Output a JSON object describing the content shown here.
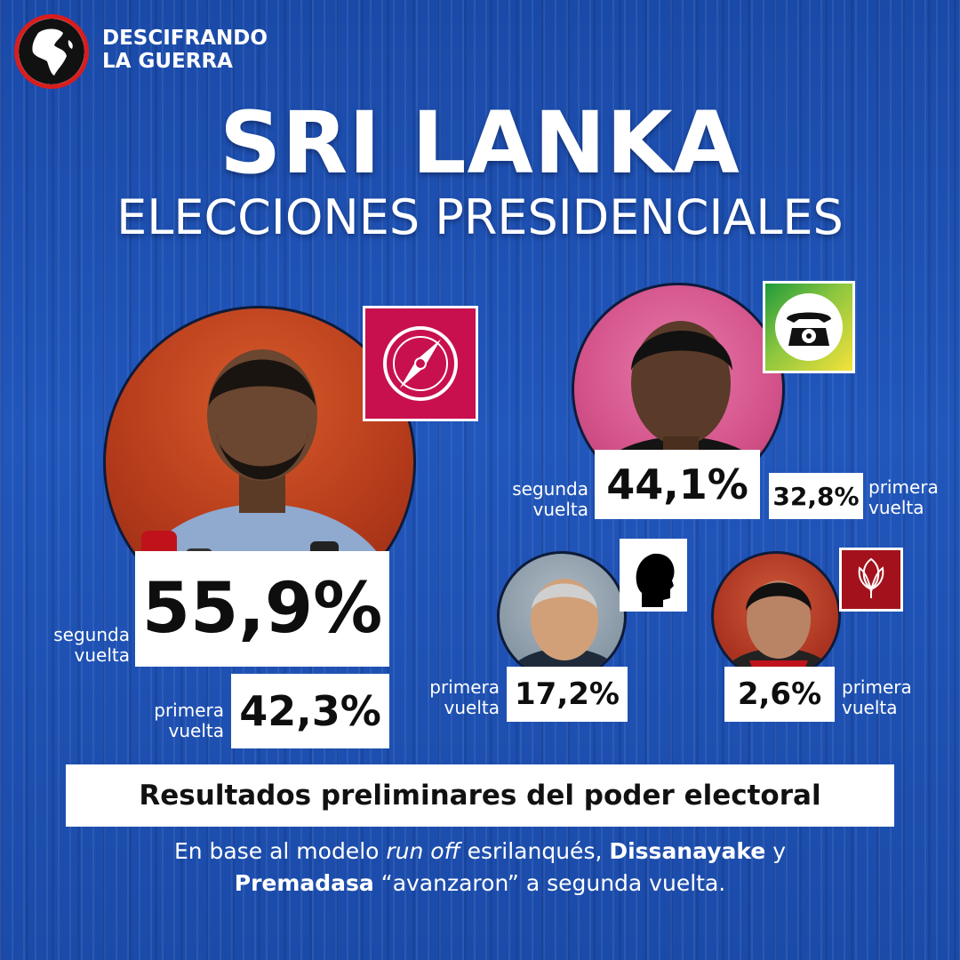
{
  "brand": {
    "line1": "DESCIFRANDO",
    "line2": "LA GUERRA"
  },
  "title": "SRI LANKA",
  "subtitle": "ELECCIONES PRESIDENCIALES",
  "candidates": {
    "dissanayake": {
      "second_round_pct": "55,9%",
      "second_round_label": [
        "segunda",
        "vuelta"
      ],
      "first_round_pct": "42,3%",
      "first_round_label": [
        "primera",
        "vuelta"
      ],
      "symbol_color": "#c8104e",
      "symbol_icon": "compass-icon",
      "photo_bg": "#c2461e"
    },
    "premadasa": {
      "second_round_pct": "44,1%",
      "second_round_label": [
        "segunda",
        "vuelta"
      ],
      "first_round_pct": "32,8%",
      "first_round_label": [
        "primera",
        "vuelta"
      ],
      "symbol_icon": "telephone-icon",
      "photo_bg": "#d7568c"
    },
    "wickremesinghe": {
      "first_round_pct": "17,2%",
      "first_round_label": [
        "primera",
        "vuelta"
      ],
      "symbol_icon": "head-silhouette-icon",
      "photo_bg": "#8a9aa6"
    },
    "rajapaksa": {
      "first_round_pct": "2,6%",
      "first_round_label": [
        "primera",
        "vuelta"
      ],
      "symbol_color": "#a3121c",
      "symbol_icon": "lotus-bud-icon",
      "photo_bg": "#b53a2a"
    }
  },
  "results_heading": "Resultados preliminares del poder electoral",
  "footer": {
    "p1": "En base al modelo ",
    "p2": "run off",
    "p3": " esrilanqués, ",
    "p4": "Dissanayake",
    "p5": " y",
    "p6": "Premadasa",
    "p7": " “avanzaron” a segunda vuelta."
  }
}
